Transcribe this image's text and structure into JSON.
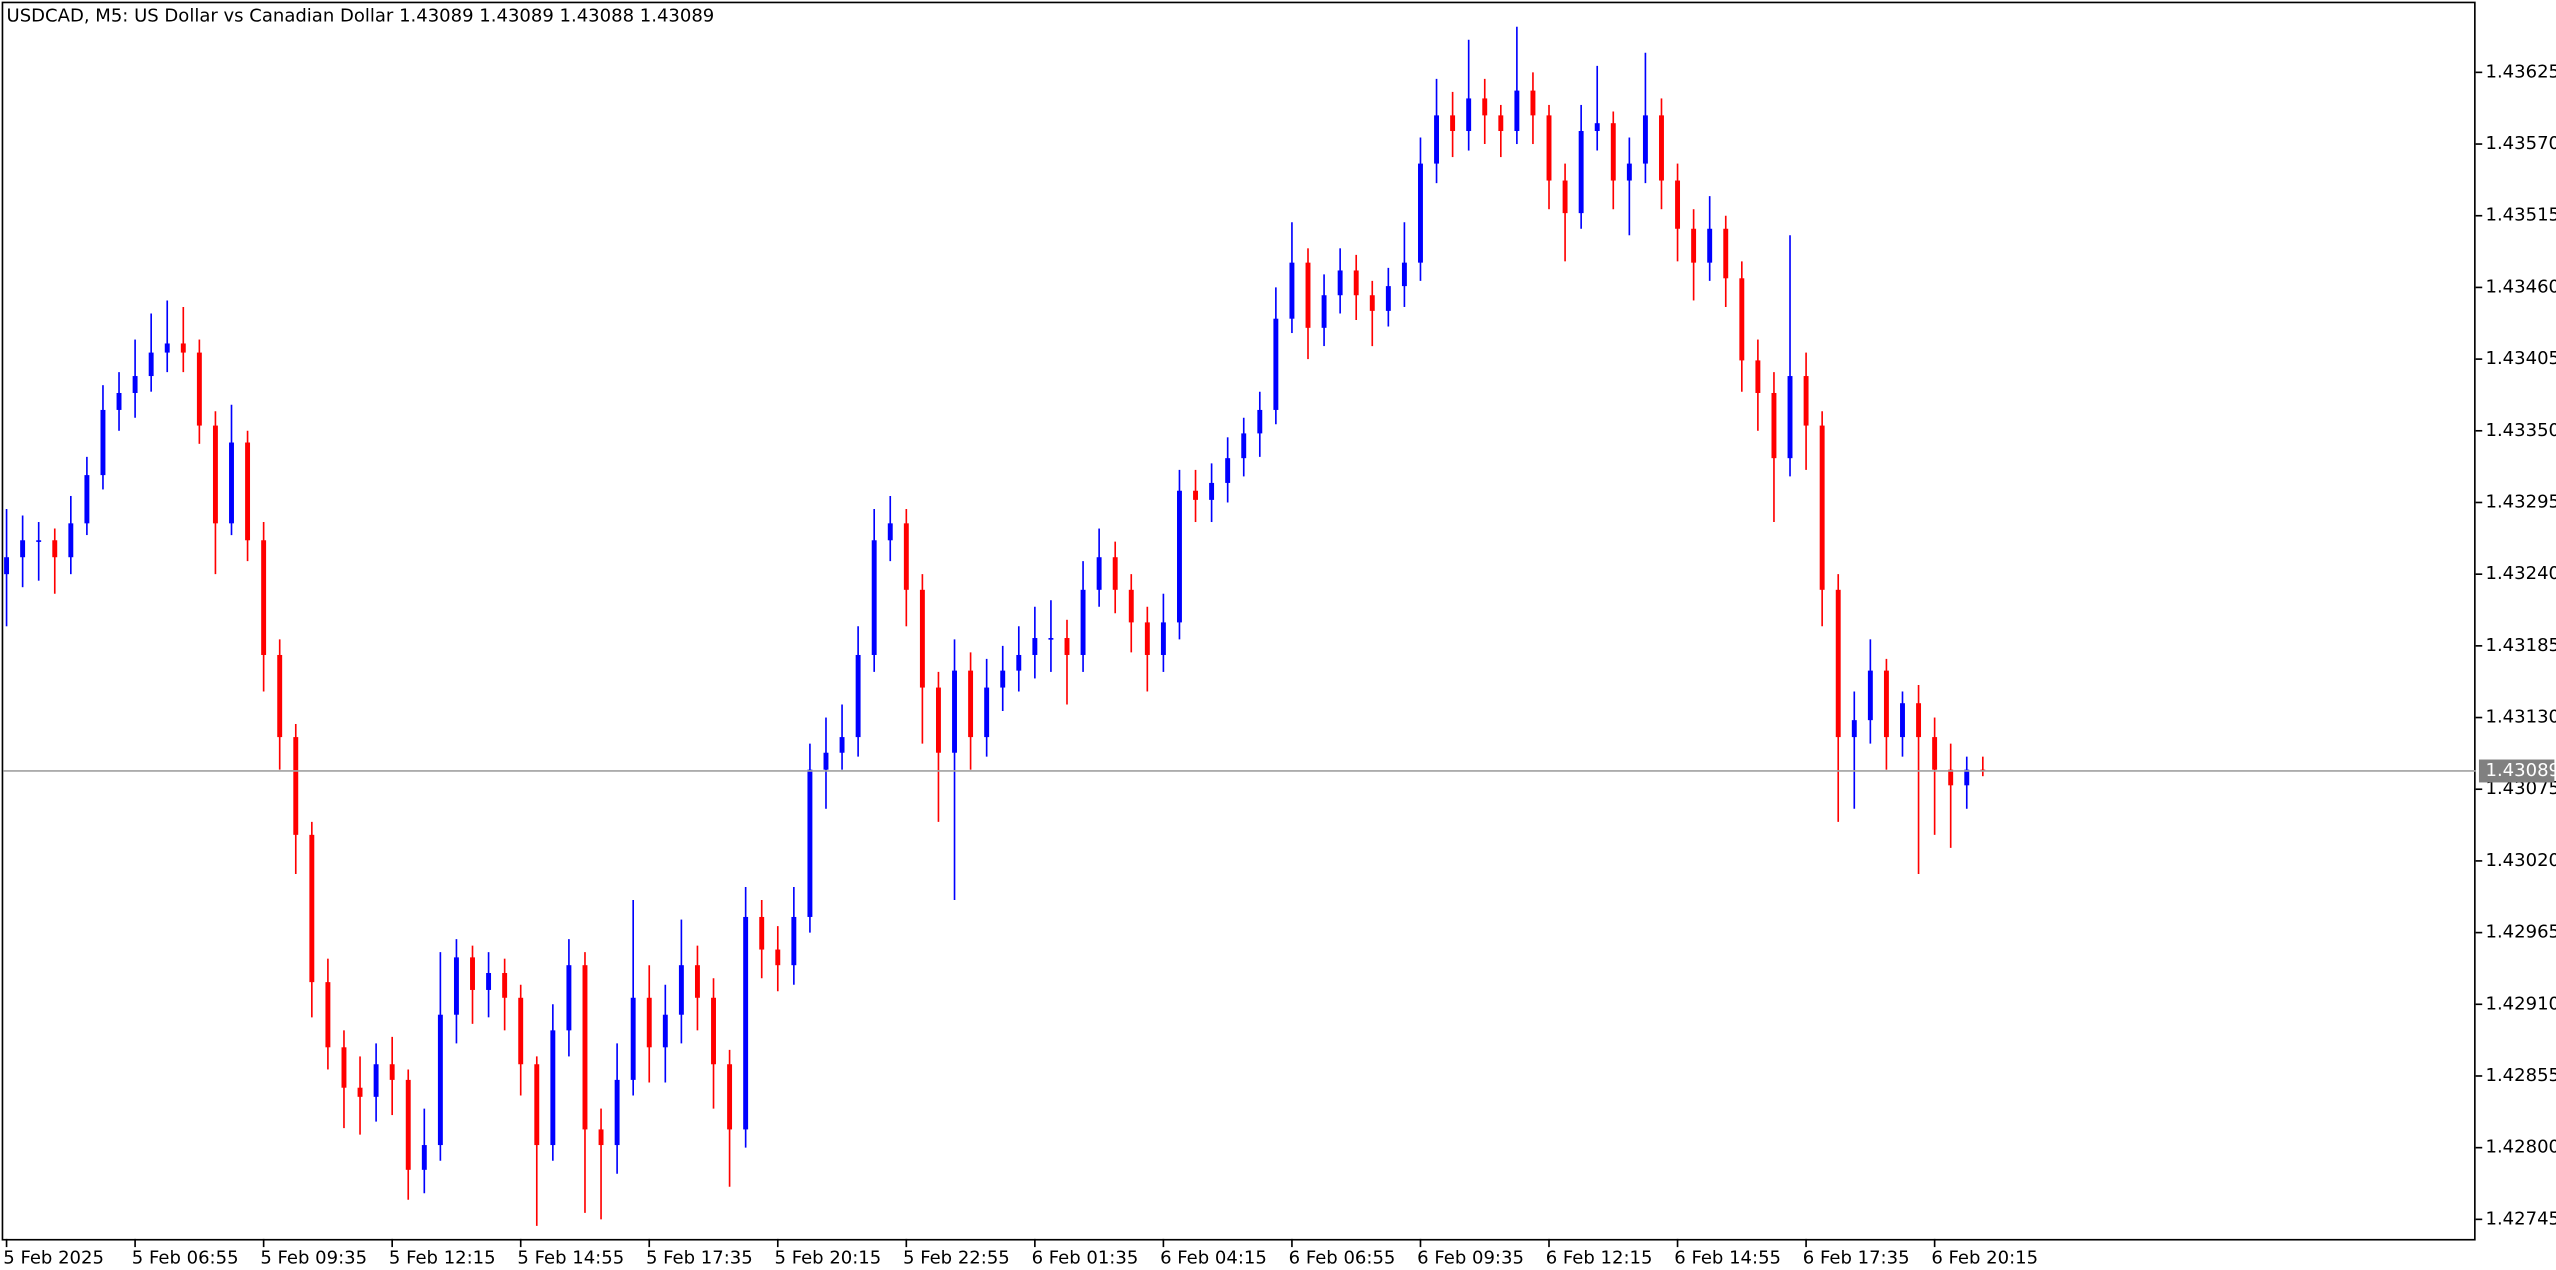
{
  "chart_data": {
    "type": "candlestick",
    "title": "USDCAD, M5:  US Dollar vs Canadian Dollar  1.43089 1.43089 1.43088 1.43089",
    "bull_color": "#0000ff",
    "bear_color": "#ff0000",
    "current_price": 1.43089,
    "ylim": [
      1.4273,
      1.43678
    ],
    "yticks": [
      1.42745,
      {
        "value": 1.428,
        "label": "1.42800"
      },
      1.42855,
      {
        "value": 1.4291,
        "label": "1.42910"
      },
      1.42965,
      {
        "value": 1.4302,
        "label": "1.43020"
      },
      1.43075,
      {
        "value": 1.4313,
        "label": "1.43130"
      },
      1.43185,
      {
        "value": 1.4324,
        "label": "1.43240"
      },
      1.43295,
      {
        "value": 1.4335,
        "label": "1.43350"
      },
      1.43405,
      {
        "value": 1.4346,
        "label": "1.43460"
      },
      1.43515,
      {
        "value": 1.4357,
        "label": "1.43570"
      },
      1.43625
    ],
    "categories": [
      "5 Feb 2025",
      null,
      null,
      null,
      null,
      null,
      null,
      null,
      "5 Feb 06:55",
      null,
      null,
      null,
      null,
      null,
      null,
      null,
      "5 Feb 09:35",
      null,
      null,
      null,
      null,
      null,
      null,
      null,
      "5 Feb 12:15",
      null,
      null,
      null,
      null,
      null,
      null,
      null,
      "5 Feb 14:55",
      null,
      null,
      null,
      null,
      null,
      null,
      null,
      "5 Feb 17:35",
      null,
      null,
      null,
      null,
      null,
      null,
      null,
      "5 Feb 20:15",
      null,
      null,
      null,
      null,
      null,
      null,
      null,
      "5 Feb 22:55",
      null,
      null,
      null,
      null,
      null,
      null,
      null,
      "6 Feb 01:35",
      null,
      null,
      null,
      null,
      null,
      null,
      null,
      "6 Feb 04:15",
      null,
      null,
      null,
      null,
      null,
      null,
      null,
      "6 Feb 06:55",
      null,
      null,
      null,
      null,
      null,
      null,
      null,
      "6 Feb 09:35",
      null,
      null,
      null,
      null,
      null,
      null,
      null,
      "6 Feb 12:15",
      null,
      null,
      null,
      null,
      null,
      null,
      null,
      "6 Feb 14:55",
      null,
      null,
      null,
      null,
      null,
      null,
      null,
      "6 Feb 17:35",
      null,
      null,
      null,
      null,
      null,
      null,
      null,
      "6 Feb 20:15",
      null,
      null,
      null
    ],
    "ohlc": [
      [
        1.4324,
        1.4329,
        1.432,
        1.43253
      ],
      [
        1.43253,
        1.43285,
        1.4323,
        1.43266
      ],
      [
        1.43266,
        1.4328,
        1.43235,
        1.43266
      ],
      [
        1.43266,
        1.43275,
        1.43225,
        1.43253
      ],
      [
        1.43253,
        1.433,
        1.4324,
        1.43279
      ],
      [
        1.43279,
        1.4333,
        1.4327,
        1.43316
      ],
      [
        1.43316,
        1.43385,
        1.43305,
        1.43366
      ],
      [
        1.43366,
        1.43395,
        1.4335,
        1.43379
      ],
      [
        1.43379,
        1.4342,
        1.4336,
        1.43392
      ],
      [
        1.43392,
        1.4344,
        1.4338,
        1.4341
      ],
      [
        1.4341,
        1.4345,
        1.43395,
        1.43417
      ],
      [
        1.43417,
        1.43445,
        1.43395,
        1.4341
      ],
      [
        1.4341,
        1.4342,
        1.4334,
        1.43354
      ],
      [
        1.43354,
        1.43365,
        1.4324,
        1.43279
      ],
      [
        1.43279,
        1.4337,
        1.4327,
        1.43341
      ],
      [
        1.43341,
        1.4335,
        1.4325,
        1.43266
      ],
      [
        1.43266,
        1.4328,
        1.4315,
        1.43178
      ],
      [
        1.43178,
        1.4319,
        1.4309,
        1.43115
      ],
      [
        1.43115,
        1.43125,
        1.4301,
        1.4304
      ],
      [
        1.4304,
        1.4305,
        1.429,
        1.42927
      ],
      [
        1.42927,
        1.42945,
        1.4286,
        1.42877
      ],
      [
        1.42877,
        1.4289,
        1.42815,
        1.42846
      ],
      [
        1.42846,
        1.4287,
        1.4281,
        1.42839
      ],
      [
        1.42839,
        1.4288,
        1.4282,
        1.42864
      ],
      [
        1.42864,
        1.42885,
        1.42825,
        1.42852
      ],
      [
        1.42852,
        1.4286,
        1.4276,
        1.42783
      ],
      [
        1.42783,
        1.4283,
        1.42765,
        1.42802
      ],
      [
        1.42802,
        1.4295,
        1.4279,
        1.42902
      ],
      [
        1.42902,
        1.4296,
        1.4288,
        1.42946
      ],
      [
        1.42946,
        1.42955,
        1.42895,
        1.42921
      ],
      [
        1.42921,
        1.4295,
        1.429,
        1.42934
      ],
      [
        1.42934,
        1.42945,
        1.4289,
        1.42915
      ],
      [
        1.42915,
        1.42925,
        1.4284,
        1.42864
      ],
      [
        1.42864,
        1.4287,
        1.4274,
        1.42802
      ],
      [
        1.42802,
        1.4291,
        1.4279,
        1.4289
      ],
      [
        1.4289,
        1.4296,
        1.4287,
        1.4294
      ],
      [
        1.4294,
        1.4295,
        1.4275,
        1.42814
      ],
      [
        1.42814,
        1.4283,
        1.42745,
        1.42802
      ],
      [
        1.42802,
        1.4288,
        1.4278,
        1.42852
      ],
      [
        1.42852,
        1.4299,
        1.4284,
        1.42915
      ],
      [
        1.42915,
        1.4294,
        1.4285,
        1.42877
      ],
      [
        1.42877,
        1.42925,
        1.4285,
        1.42902
      ],
      [
        1.42902,
        1.42975,
        1.4288,
        1.4294
      ],
      [
        1.4294,
        1.42955,
        1.4289,
        1.42915
      ],
      [
        1.42915,
        1.4293,
        1.4283,
        1.42864
      ],
      [
        1.42864,
        1.42875,
        1.4277,
        1.42814
      ],
      [
        1.42814,
        1.43,
        1.428,
        1.42977
      ],
      [
        1.42977,
        1.4299,
        1.4293,
        1.42952
      ],
      [
        1.42952,
        1.4297,
        1.4292,
        1.4294
      ],
      [
        1.4294,
        1.43,
        1.42925,
        1.42977
      ],
      [
        1.42977,
        1.4311,
        1.42965,
        1.4309
      ],
      [
        1.4309,
        1.4313,
        1.4306,
        1.43103
      ],
      [
        1.43103,
        1.4314,
        1.4309,
        1.43115
      ],
      [
        1.43115,
        1.432,
        1.431,
        1.43178
      ],
      [
        1.43178,
        1.4329,
        1.43165,
        1.43266
      ],
      [
        1.43266,
        1.433,
        1.4325,
        1.43279
      ],
      [
        1.43279,
        1.4329,
        1.432,
        1.43228
      ],
      [
        1.43228,
        1.4324,
        1.4311,
        1.43153
      ],
      [
        1.43153,
        1.43165,
        1.4305,
        1.43103
      ],
      [
        1.43103,
        1.4319,
        1.4299,
        1.43166
      ],
      [
        1.43166,
        1.4318,
        1.4309,
        1.43115
      ],
      [
        1.43115,
        1.43175,
        1.431,
        1.43153
      ],
      [
        1.43153,
        1.43185,
        1.43135,
        1.43166
      ],
      [
        1.43166,
        1.432,
        1.4315,
        1.43178
      ],
      [
        1.43178,
        1.43215,
        1.4316,
        1.43191
      ],
      [
        1.43191,
        1.4322,
        1.43165,
        1.43191
      ],
      [
        1.43191,
        1.43205,
        1.4314,
        1.43178
      ],
      [
        1.43178,
        1.4325,
        1.43165,
        1.43228
      ],
      [
        1.43228,
        1.43275,
        1.43215,
        1.43253
      ],
      [
        1.43253,
        1.43265,
        1.4321,
        1.43228
      ],
      [
        1.43228,
        1.4324,
        1.4318,
        1.43203
      ],
      [
        1.43203,
        1.43215,
        1.4315,
        1.43178
      ],
      [
        1.43178,
        1.43225,
        1.43165,
        1.43203
      ],
      [
        1.43203,
        1.4332,
        1.4319,
        1.43304
      ],
      [
        1.43304,
        1.4332,
        1.4328,
        1.43297
      ],
      [
        1.43297,
        1.43325,
        1.4328,
        1.4331
      ],
      [
        1.4331,
        1.43345,
        1.43295,
        1.43329
      ],
      [
        1.43329,
        1.4336,
        1.43315,
        1.43348
      ],
      [
        1.43348,
        1.4338,
        1.4333,
        1.43366
      ],
      [
        1.43366,
        1.4346,
        1.43355,
        1.43436
      ],
      [
        1.43436,
        1.4351,
        1.43425,
        1.43479
      ],
      [
        1.43479,
        1.4349,
        1.43405,
        1.43429
      ],
      [
        1.43429,
        1.4347,
        1.43415,
        1.43454
      ],
      [
        1.43454,
        1.4349,
        1.4344,
        1.43473
      ],
      [
        1.43473,
        1.43485,
        1.43435,
        1.43454
      ],
      [
        1.43454,
        1.43465,
        1.43415,
        1.43442
      ],
      [
        1.43442,
        1.43475,
        1.4343,
        1.43461
      ],
      [
        1.43461,
        1.4351,
        1.43445,
        1.43479
      ],
      [
        1.43479,
        1.43575,
        1.43465,
        1.43555
      ],
      [
        1.43555,
        1.4362,
        1.4354,
        1.43592
      ],
      [
        1.43592,
        1.4361,
        1.4356,
        1.4358
      ],
      [
        1.4358,
        1.4365,
        1.43565,
        1.43605
      ],
      [
        1.43605,
        1.4362,
        1.4357,
        1.43592
      ],
      [
        1.43592,
        1.436,
        1.4356,
        1.4358
      ],
      [
        1.4358,
        1.4366,
        1.4357,
        1.43611
      ],
      [
        1.43611,
        1.43625,
        1.4357,
        1.43592
      ],
      [
        1.43592,
        1.436,
        1.4352,
        1.43542
      ],
      [
        1.43542,
        1.43555,
        1.4348,
        1.43517
      ],
      [
        1.43517,
        1.436,
        1.43505,
        1.4358
      ],
      [
        1.4358,
        1.4363,
        1.43565,
        1.43586
      ],
      [
        1.43586,
        1.43595,
        1.4352,
        1.43542
      ],
      [
        1.43542,
        1.43575,
        1.435,
        1.43555
      ],
      [
        1.43555,
        1.4364,
        1.4354,
        1.43592
      ],
      [
        1.43592,
        1.43605,
        1.4352,
        1.43542
      ],
      [
        1.43542,
        1.43555,
        1.4348,
        1.43505
      ],
      [
        1.43505,
        1.4352,
        1.4345,
        1.43479
      ],
      [
        1.43479,
        1.4353,
        1.43465,
        1.43505
      ],
      [
        1.43505,
        1.43515,
        1.43445,
        1.43467
      ],
      [
        1.43467,
        1.4348,
        1.4338,
        1.43404
      ],
      [
        1.43404,
        1.4342,
        1.4335,
        1.43379
      ],
      [
        1.43379,
        1.43395,
        1.4328,
        1.43329
      ],
      [
        1.43329,
        1.435,
        1.43315,
        1.43392
      ],
      [
        1.43392,
        1.4341,
        1.4332,
        1.43354
      ],
      [
        1.43354,
        1.43365,
        1.432,
        1.43228
      ],
      [
        1.43228,
        1.4324,
        1.4305,
        1.43115
      ],
      [
        1.43115,
        1.4315,
        1.4306,
        1.43128
      ],
      [
        1.43128,
        1.4319,
        1.4311,
        1.43166
      ],
      [
        1.43166,
        1.43175,
        1.4309,
        1.43115
      ],
      [
        1.43115,
        1.4315,
        1.431,
        1.43141
      ],
      [
        1.43141,
        1.43155,
        1.4301,
        1.43115
      ],
      [
        1.43115,
        1.4313,
        1.4304,
        1.4309
      ],
      [
        1.4309,
        1.4311,
        1.4303,
        1.43078
      ],
      [
        1.43078,
        1.431,
        1.4306,
        1.4309
      ],
      [
        1.4309,
        1.431,
        1.43085,
        1.43089
      ]
    ]
  }
}
